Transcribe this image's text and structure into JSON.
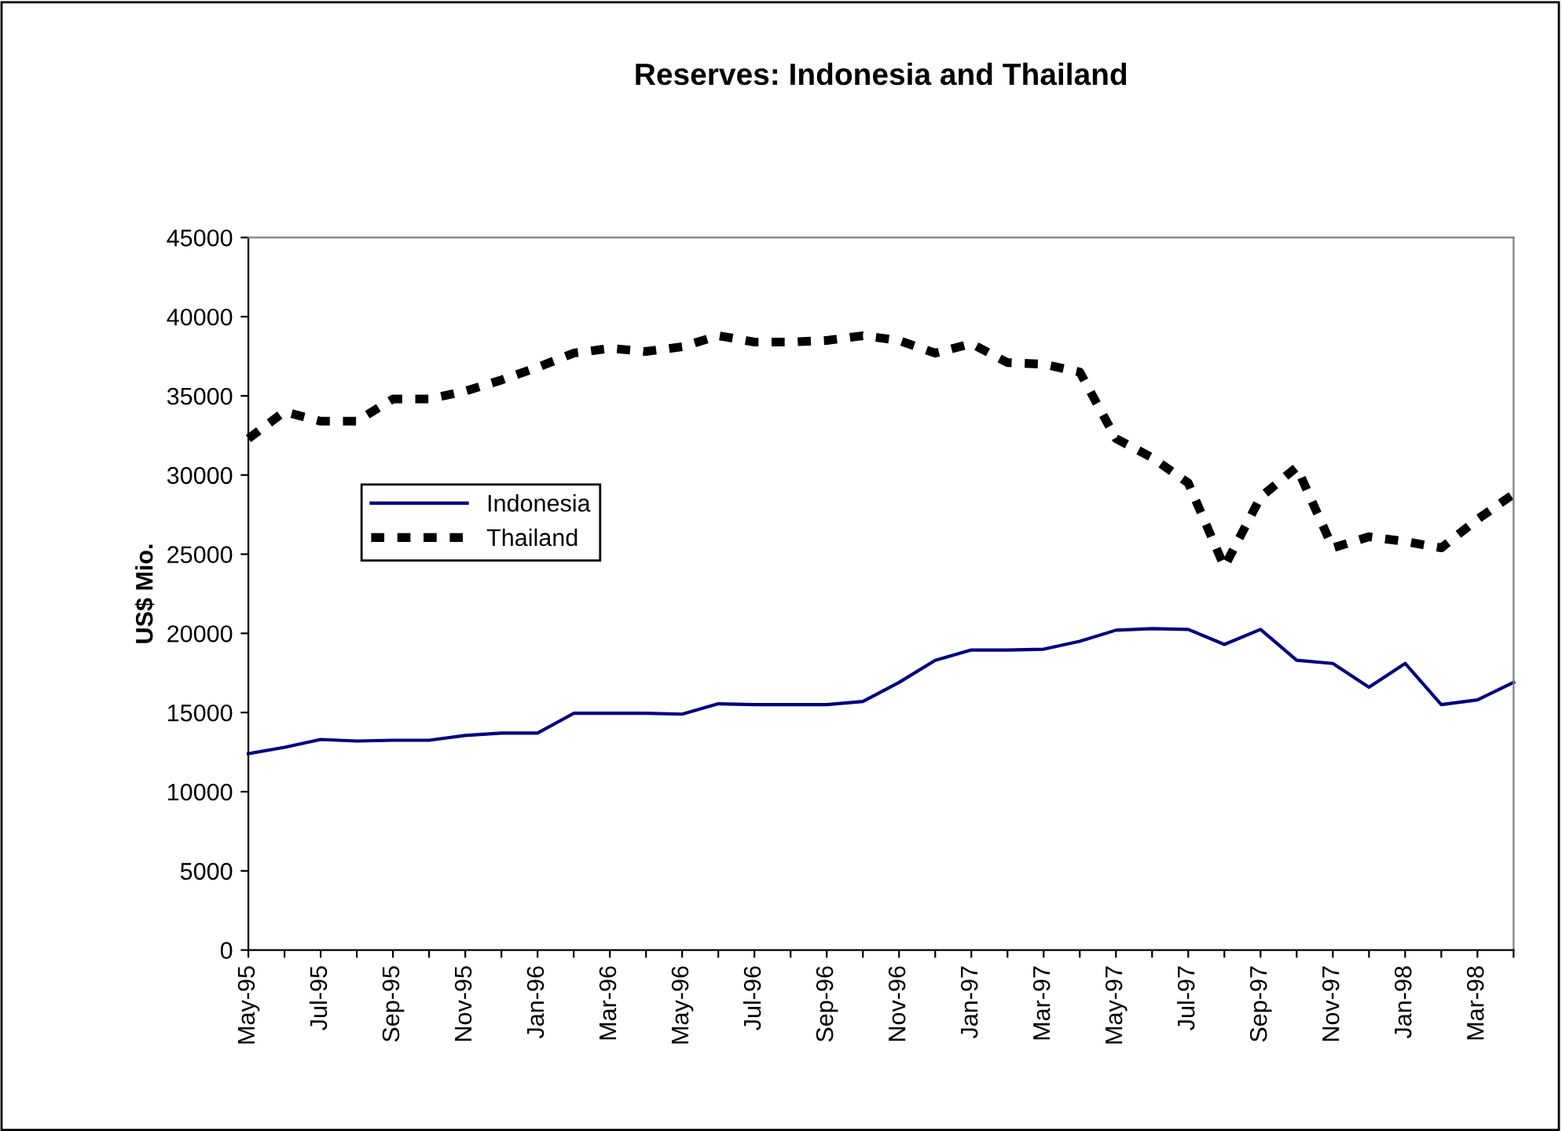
{
  "chart_data": {
    "type": "line",
    "title": "Reserves: Indonesia and Thailand",
    "ylabel": "US$ Mio.",
    "categories": [
      "May-95",
      null,
      "Jul-95",
      null,
      "Sep-95",
      null,
      "Nov-95",
      null,
      "Jan-96",
      null,
      "Mar-96",
      null,
      "May-96",
      null,
      "Jul-96",
      null,
      "Sep-96",
      null,
      "Nov-96",
      null,
      "Jan-97",
      null,
      "Mar-97",
      null,
      "May-97",
      null,
      "Jul-97",
      null,
      "Sep-97",
      null,
      "Nov-97",
      null,
      "Jan-98",
      null,
      "Mar-98",
      null
    ],
    "series": [
      {
        "name": "Indonesia",
        "color": "#000080",
        "line_style": "solid",
        "values": [
          12400,
          12800,
          13300,
          13200,
          13250,
          13250,
          13550,
          13700,
          13700,
          14950,
          14950,
          14950,
          14900,
          15550,
          15500,
          15500,
          15500,
          15700,
          16900,
          18300,
          18950,
          18950,
          19000,
          19500,
          20200,
          20300,
          20250,
          19300,
          20250,
          18300,
          18100,
          16600,
          18100,
          15500,
          15800,
          16900
        ]
      },
      {
        "name": "Thailand",
        "color": "#000000",
        "line_style": "dashed",
        "values": [
          32300,
          34000,
          33400,
          33400,
          34800,
          34800,
          35300,
          36000,
          36800,
          37700,
          38000,
          37800,
          38100,
          38800,
          38400,
          38400,
          38500,
          38800,
          38500,
          37700,
          38300,
          37100,
          37000,
          36500,
          32300,
          31100,
          29500,
          24200,
          28600,
          30500,
          25400,
          26100,
          25800,
          25400,
          27200,
          28800
        ]
      }
    ],
    "ylim": [
      0,
      45000
    ],
    "yticks": [
      0,
      5000,
      10000,
      15000,
      20000,
      25000,
      30000,
      35000,
      40000,
      45000
    ],
    "grid": false,
    "legend": "left",
    "marker": "none"
  }
}
